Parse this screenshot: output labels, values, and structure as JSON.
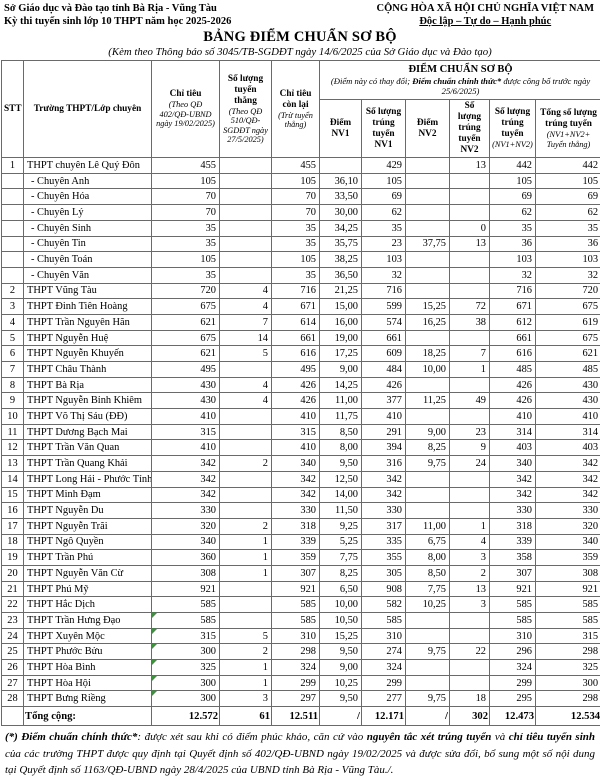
{
  "colors": {
    "background": "#ffffff",
    "text": "#000000",
    "table_border": "#6a6a6a",
    "marker_green": "#339933"
  },
  "header": {
    "left_line1": "Sở Giáo dục và Đào tạo tỉnh Bà Rịa - Vũng Tàu",
    "left_line2": "Kỳ thi tuyển sinh lớp 10 THPT năm học 2025-2026",
    "right_line1": "CỘNG HÒA XÃ HỘI CHỦ NGHĨA VIỆT NAM",
    "right_line2": "Độc lập – Tự do – Hạnh phúc"
  },
  "title": "BẢNG ĐIỂM CHUẨN SƠ BỘ",
  "subtitle": "(Kèm theo Thông báo số 3045/TB-SGDĐT ngày 14/6/2025 của Sở Giáo dục và Đào tạo)",
  "table": {
    "head": {
      "stt": "STT",
      "school": "Trường THPT/Lớp chuyên",
      "chi_tieu_label": "Chỉ tiêu",
      "chi_tieu_note": "(Theo QĐ 402/QĐ-UBND ngày 19/02/2025)",
      "tuyen_thang_label": "Số lượng tuyển thẳng",
      "tuyen_thang_note": "(Theo QĐ 510/QĐ-SGDĐT ngày 27/5/2025)",
      "con_lai_label": "Chỉ tiêu còn lại",
      "con_lai_note": "(Trừ tuyển thẳng)",
      "group_title": "ĐIỂM CHUẨN SƠ BỘ",
      "group_note_prefix": "(Điểm này có thay đổi; ",
      "group_note_bold": "Điểm chuẩn chính thức*",
      "group_note_suffix": " được công bố trước ngày 25/6/2025)",
      "diem_nv1": "Điểm NV1",
      "sl_nv1": "Số lượng trúng tuyển NV1",
      "diem_nv2": "Điểm NV2",
      "sl_nv2": "Số lượng trúng tuyển NV2",
      "sl_nv12_label": "Số lượng trúng tuyển",
      "sl_nv12_note": "(NV1+NV2)",
      "tong_label": "Tổng số lượng trúng tuyển",
      "tong_note": "(NV1+NV2+ Tuyển thẳng)"
    },
    "rows": [
      {
        "stt": "1",
        "name": "THPT chuyên Lê Quý Đôn",
        "sub": false,
        "marker": false,
        "v": [
          "455",
          "",
          "455",
          "",
          "429",
          "",
          "13",
          "442",
          "442"
        ]
      },
      {
        "stt": "",
        "name": "- Chuyên Anh",
        "sub": true,
        "marker": false,
        "v": [
          "105",
          "",
          "105",
          "36,10",
          "105",
          "",
          "",
          "105",
          "105"
        ]
      },
      {
        "stt": "",
        "name": "- Chuyên Hóa",
        "sub": true,
        "marker": false,
        "v": [
          "70",
          "",
          "70",
          "33,50",
          "69",
          "",
          "",
          "69",
          "69"
        ]
      },
      {
        "stt": "",
        "name": "- Chuyên Lý",
        "sub": true,
        "marker": false,
        "v": [
          "70",
          "",
          "70",
          "30,00",
          "62",
          "",
          "",
          "62",
          "62"
        ]
      },
      {
        "stt": "",
        "name": "- Chuyên Sinh",
        "sub": true,
        "marker": false,
        "v": [
          "35",
          "",
          "35",
          "34,25",
          "35",
          "",
          "0",
          "35",
          "35"
        ]
      },
      {
        "stt": "",
        "name": "- Chuyên Tin",
        "sub": true,
        "marker": false,
        "v": [
          "35",
          "",
          "35",
          "35,75",
          "23",
          "37,75",
          "13",
          "36",
          "36"
        ]
      },
      {
        "stt": "",
        "name": "- Chuyên Toán",
        "sub": true,
        "marker": false,
        "v": [
          "105",
          "",
          "105",
          "38,25",
          "103",
          "",
          "",
          "103",
          "103"
        ]
      },
      {
        "stt": "",
        "name": "- Chuyên Văn",
        "sub": true,
        "marker": false,
        "v": [
          "35",
          "",
          "35",
          "36,50",
          "32",
          "",
          "",
          "32",
          "32"
        ]
      },
      {
        "stt": "2",
        "name": "THPT Vũng Tàu",
        "sub": false,
        "marker": false,
        "v": [
          "720",
          "4",
          "716",
          "21,25",
          "716",
          "",
          "",
          "716",
          "720"
        ]
      },
      {
        "stt": "3",
        "name": "THPT Đinh Tiên Hoàng",
        "sub": false,
        "marker": false,
        "v": [
          "675",
          "4",
          "671",
          "15,00",
          "599",
          "15,25",
          "72",
          "671",
          "675"
        ]
      },
      {
        "stt": "4",
        "name": "THPT Trần Nguyên Hãn",
        "sub": false,
        "marker": false,
        "v": [
          "621",
          "7",
          "614",
          "16,00",
          "574",
          "16,25",
          "38",
          "612",
          "619"
        ]
      },
      {
        "stt": "5",
        "name": "THPT Nguyễn Huệ",
        "sub": false,
        "marker": false,
        "v": [
          "675",
          "14",
          "661",
          "19,00",
          "661",
          "",
          "",
          "661",
          "675"
        ]
      },
      {
        "stt": "6",
        "name": "THPT Nguyễn Khuyến",
        "sub": false,
        "marker": false,
        "v": [
          "621",
          "5",
          "616",
          "17,25",
          "609",
          "18,25",
          "7",
          "616",
          "621"
        ]
      },
      {
        "stt": "7",
        "name": "THPT Châu Thành",
        "sub": false,
        "marker": false,
        "v": [
          "495",
          "",
          "495",
          "9,00",
          "484",
          "10,00",
          "1",
          "485",
          "485"
        ]
      },
      {
        "stt": "8",
        "name": "THPT Bà Rịa",
        "sub": false,
        "marker": false,
        "v": [
          "430",
          "4",
          "426",
          "14,25",
          "426",
          "",
          "",
          "426",
          "430"
        ]
      },
      {
        "stt": "9",
        "name": "THPT Nguyễn Bỉnh Khiêm",
        "sub": false,
        "marker": false,
        "v": [
          "430",
          "4",
          "426",
          "11,00",
          "377",
          "11,25",
          "49",
          "426",
          "430"
        ]
      },
      {
        "stt": "10",
        "name": "THPT Võ Thị Sáu (ĐĐ)",
        "sub": false,
        "marker": false,
        "v": [
          "410",
          "",
          "410",
          "11,75",
          "410",
          "",
          "",
          "410",
          "410"
        ]
      },
      {
        "stt": "11",
        "name": "THPT Dương Bạch Mai",
        "sub": false,
        "marker": false,
        "v": [
          "315",
          "",
          "315",
          "8,50",
          "291",
          "9,00",
          "23",
          "314",
          "314"
        ]
      },
      {
        "stt": "12",
        "name": "THPT Trần Văn Quan",
        "sub": false,
        "marker": false,
        "v": [
          "410",
          "",
          "410",
          "8,00",
          "394",
          "8,25",
          "9",
          "403",
          "403"
        ]
      },
      {
        "stt": "13",
        "name": "THPT Trần Quang Khải",
        "sub": false,
        "marker": false,
        "v": [
          "342",
          "2",
          "340",
          "9,50",
          "316",
          "9,75",
          "24",
          "340",
          "342"
        ]
      },
      {
        "stt": "14",
        "name": "THPT Long Hải - Phước Tỉnh",
        "sub": false,
        "marker": false,
        "v": [
          "342",
          "",
          "342",
          "12,50",
          "342",
          "",
          "",
          "342",
          "342"
        ]
      },
      {
        "stt": "15",
        "name": "THPT Minh Đạm",
        "sub": false,
        "marker": false,
        "v": [
          "342",
          "",
          "342",
          "14,00",
          "342",
          "",
          "",
          "342",
          "342"
        ]
      },
      {
        "stt": "16",
        "name": "THPT Nguyễn Du",
        "sub": false,
        "marker": false,
        "v": [
          "330",
          "",
          "330",
          "11,50",
          "330",
          "",
          "",
          "330",
          "330"
        ]
      },
      {
        "stt": "17",
        "name": "THPT Nguyễn Trãi",
        "sub": false,
        "marker": false,
        "v": [
          "320",
          "2",
          "318",
          "9,25",
          "317",
          "11,00",
          "1",
          "318",
          "320"
        ]
      },
      {
        "stt": "18",
        "name": "THPT Ngô Quyền",
        "sub": false,
        "marker": false,
        "v": [
          "340",
          "1",
          "339",
          "5,25",
          "335",
          "6,75",
          "4",
          "339",
          "340"
        ]
      },
      {
        "stt": "19",
        "name": "THPT Trần Phú",
        "sub": false,
        "marker": false,
        "v": [
          "360",
          "1",
          "359",
          "7,75",
          "355",
          "8,00",
          "3",
          "358",
          "359"
        ]
      },
      {
        "stt": "20",
        "name": "THPT Nguyễn Văn Cừ",
        "sub": false,
        "marker": false,
        "v": [
          "308",
          "1",
          "307",
          "8,25",
          "305",
          "8,50",
          "2",
          "307",
          "308"
        ]
      },
      {
        "stt": "21",
        "name": "THPT Phú Mỹ",
        "sub": false,
        "marker": false,
        "v": [
          "921",
          "",
          "921",
          "6,50",
          "908",
          "7,75",
          "13",
          "921",
          "921"
        ]
      },
      {
        "stt": "22",
        "name": "THPT Hắc Dịch",
        "sub": false,
        "marker": false,
        "v": [
          "585",
          "",
          "585",
          "10,00",
          "582",
          "10,25",
          "3",
          "585",
          "585"
        ]
      },
      {
        "stt": "23",
        "name": "THPT Trần Hưng Đạo",
        "sub": false,
        "marker": true,
        "v": [
          "585",
          "",
          "585",
          "10,50",
          "585",
          "",
          "",
          "585",
          "585"
        ]
      },
      {
        "stt": "24",
        "name": "THPT Xuyên Mộc",
        "sub": false,
        "marker": true,
        "v": [
          "315",
          "5",
          "310",
          "15,25",
          "310",
          "",
          "",
          "310",
          "315"
        ]
      },
      {
        "stt": "25",
        "name": "THPT Phước Bửu",
        "sub": false,
        "marker": true,
        "v": [
          "300",
          "2",
          "298",
          "9,50",
          "274",
          "9,75",
          "22",
          "296",
          "298"
        ]
      },
      {
        "stt": "26",
        "name": "THPT Hòa Bình",
        "sub": false,
        "marker": true,
        "v": [
          "325",
          "1",
          "324",
          "9,00",
          "324",
          "",
          "",
          "324",
          "325"
        ]
      },
      {
        "stt": "27",
        "name": "THPT Hòa Hội",
        "sub": false,
        "marker": true,
        "v": [
          "300",
          "1",
          "299",
          "10,25",
          "299",
          "",
          "",
          "299",
          "300"
        ]
      },
      {
        "stt": "28",
        "name": "THPT Bưng Riềng",
        "sub": false,
        "marker": true,
        "v": [
          "300",
          "3",
          "297",
          "9,50",
          "277",
          "9,75",
          "18",
          "295",
          "298"
        ]
      }
    ],
    "total": {
      "label": "Tổng cộng:",
      "values": [
        "12.572",
        "61",
        "12.511",
        "/",
        "12.171",
        "/",
        "302",
        "12.473",
        "12.534"
      ]
    }
  },
  "footnote": {
    "bold1": "(*) Điểm chuẩn chính thức*",
    "t1": ": được xét sau khi có điểm phúc khảo, căn cứ vào ",
    "bold2": "nguyên tắc xét trúng tuyển",
    "t2": " và ",
    "bold3": "chỉ tiêu tuyển sinh",
    "t3": " của các trường THPT được quy định tại Quyết định số 402/QĐ-UBND ngày 19/02/2025 và được sửa đổi, bổ sung một số nội dung tại Quyết định số 1163/QĐ-UBND ngày 28/4/2025 của UBND tỉnh Bà Rịa - Vũng Tàu./."
  }
}
